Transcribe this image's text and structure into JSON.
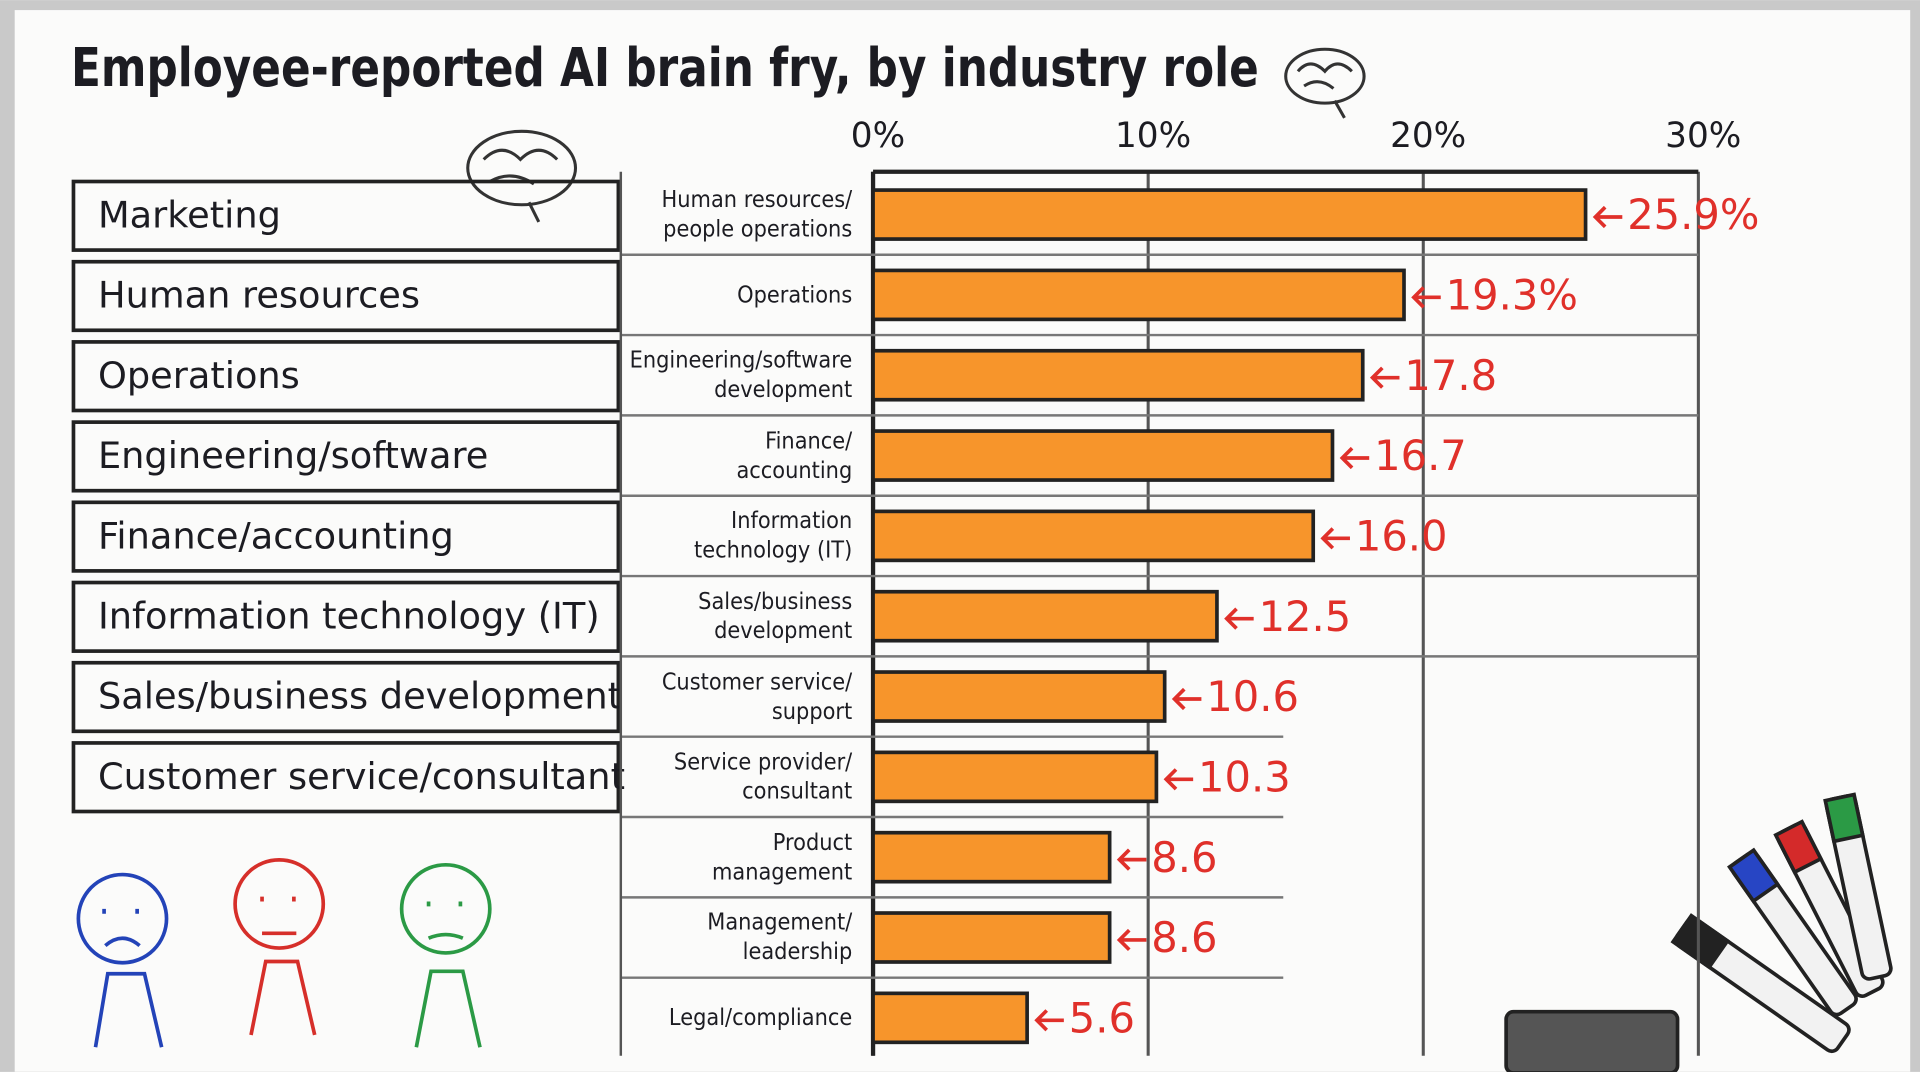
{
  "title": "Employee-reported AI brain fry, by industry role",
  "roles": [
    "Marketing",
    "Human resources",
    "Operations",
    "Engineering/software",
    "Finance/accounting",
    "Information technology (IT)",
    "Sales/business development",
    "Customer service/consultant"
  ],
  "chart_data": {
    "type": "bar",
    "orientation": "horizontal",
    "categories": [
      "Human resources/\npeople operations",
      "Operations",
      "Engineering/software\ndevelopment",
      "Finance/\naccounting",
      "Information\ntechnology (IT)",
      "Sales/business\ndevelopment",
      "Customer service/\nsupport",
      "Service provider/\nconsultant",
      "Product\nmanagement",
      "Management/\nleadership",
      "Legal/compliance"
    ],
    "values": [
      25.9,
      19.3,
      17.8,
      16.7,
      16.0,
      12.5,
      10.6,
      10.3,
      8.6,
      8.6,
      5.6
    ],
    "value_labels": [
      "25.9%",
      "19.3%",
      "17.8",
      "16.7",
      "16.0",
      "12.5",
      "10.6",
      "10.3",
      "8.6",
      "8.6",
      "5.6"
    ],
    "color": "#f7952b",
    "label_color": "#e0302a",
    "xlim": [
      0,
      30
    ],
    "xticks": [
      {
        "value": 0,
        "label": "0%"
      },
      {
        "value": 10,
        "label": "10%"
      },
      {
        "value": 20,
        "label": "20%"
      },
      {
        "value": 30,
        "label": "30%"
      }
    ],
    "grid": true
  }
}
